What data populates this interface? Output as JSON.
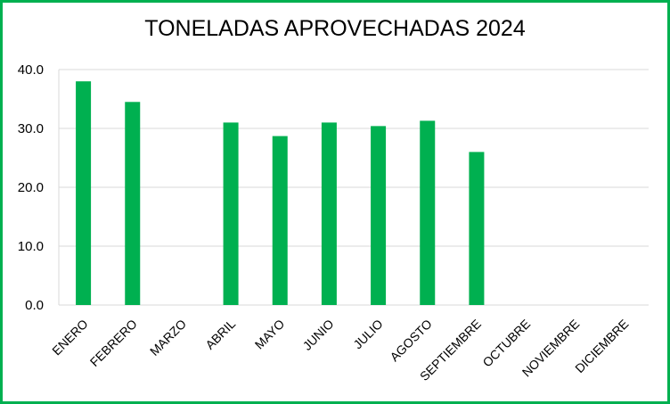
{
  "chart_data": {
    "type": "bar",
    "title": "TONELADAS APROVECHADAS 2024",
    "categories": [
      "ENERO",
      "FEBRERO",
      "MARZO",
      "ABRIL",
      "MAYO",
      "JUNIO",
      "JULIO",
      "AGOSTO",
      "SEPTIEMBRE",
      "OCTUBRE",
      "NOVIEMBRE",
      "DICIEMBRE"
    ],
    "values": [
      38.0,
      34.5,
      null,
      31.0,
      28.7,
      31.0,
      30.4,
      31.3,
      26.0,
      null,
      null,
      null
    ],
    "ylim": [
      0,
      40
    ],
    "yticks": [
      "0.0",
      "10.0",
      "20.0",
      "30.0",
      "40.0"
    ],
    "grid": true,
    "legend": "none",
    "bar_color": "#00b050",
    "border_color": "#00b050",
    "grid_color": "#d9d9d9"
  }
}
